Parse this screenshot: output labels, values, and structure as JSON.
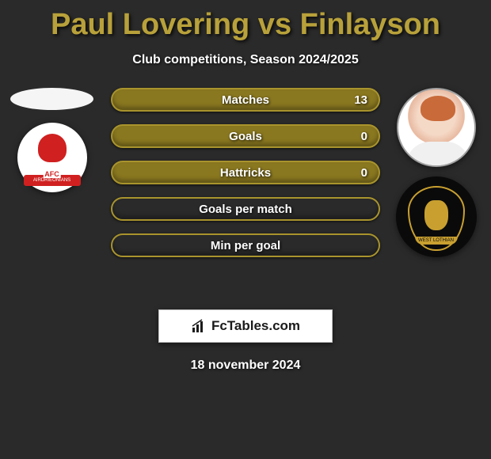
{
  "title": "Paul Lovering vs Finlayson",
  "subtitle": "Club competitions, Season 2024/2025",
  "title_color": "#b8a13a",
  "text_color": "#ffffff",
  "background_color": "#2a2a2a",
  "bar_border_color": "#a9942d",
  "bar_fill_color": "#8a7820",
  "stats": [
    {
      "label": "Matches",
      "value_right": "13",
      "fill_pct": 100
    },
    {
      "label": "Goals",
      "value_right": "0",
      "fill_pct": 100
    },
    {
      "label": "Hattricks",
      "value_right": "0",
      "fill_pct": 100
    },
    {
      "label": "Goals per match",
      "value_right": "",
      "fill_pct": 0
    },
    {
      "label": "Min per goal",
      "value_right": "",
      "fill_pct": 0
    }
  ],
  "left": {
    "player_placeholder": true,
    "club_name": "AIRDRIEONIANS",
    "club_badge_text": "AFC"
  },
  "right": {
    "player_has_photo": true,
    "club_name": "WEST LOTHIAN"
  },
  "footer_brand": "FcTables.com",
  "date": "18 november 2024"
}
